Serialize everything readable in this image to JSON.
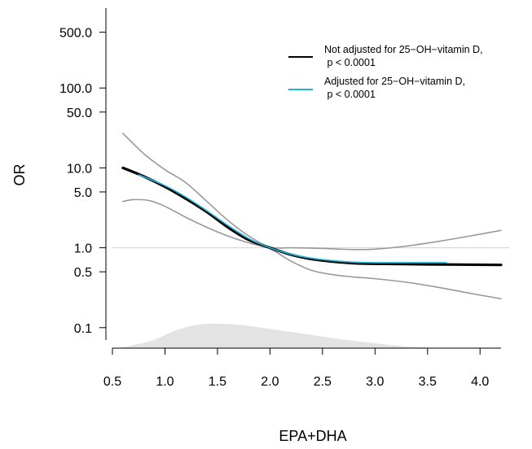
{
  "chart_data": {
    "type": "line",
    "title": "",
    "xlabel": "EPA+DHA",
    "ylabel": "OR",
    "xlim": [
      0.5,
      4.2
    ],
    "ylim": [
      0.07,
      1000
    ],
    "y_scale": "log",
    "x_ticks": [
      0.5,
      1.0,
      1.5,
      2.0,
      2.5,
      3.0,
      3.5,
      4.0
    ],
    "x_tick_labels": [
      "0.5",
      "1.0",
      "1.5",
      "2.0",
      "2.5",
      "3.0",
      "3.5",
      "4.0"
    ],
    "y_ticks": [
      0.1,
      0.5,
      1.0,
      5.0,
      10.0,
      50.0,
      100.0,
      500.0
    ],
    "y_tick_labels": [
      "0.1",
      "0.5",
      "1.0",
      "5.0",
      "10.0",
      "50.0",
      "100.0",
      "500.0"
    ],
    "reference_line": {
      "y": 1.0,
      "color": "#d0d0d0"
    },
    "legend": {
      "position": "top-right",
      "entries": [
        {
          "line1": "Not adjusted for 25−OH−vitamin D,",
          "line2": " p < 0.0001",
          "color": "#000000"
        },
        {
          "line1": "Adjusted for 25−OH−vitamin D,",
          "line2": " p < 0.0001",
          "color": "#1fb4d8"
        }
      ]
    },
    "series": [
      {
        "id": "not_adjusted",
        "color": "#000000",
        "x": [
          0.6,
          0.8,
          1.0,
          1.2,
          1.4,
          1.6,
          1.8,
          2.0,
          2.2,
          2.4,
          2.6,
          2.8,
          3.0,
          3.5,
          4.2
        ],
        "y": [
          10.0,
          7.8,
          5.8,
          4.1,
          2.8,
          1.8,
          1.25,
          1.0,
          0.82,
          0.72,
          0.67,
          0.64,
          0.63,
          0.62,
          0.61
        ]
      },
      {
        "id": "adjusted",
        "color": "#1fb4d8",
        "x": [
          0.75,
          1.0,
          1.2,
          1.4,
          1.6,
          1.8,
          2.0,
          2.2,
          2.4,
          2.6,
          2.8,
          3.0,
          3.3,
          3.68
        ],
        "y": [
          8.2,
          6.0,
          4.3,
          2.9,
          1.9,
          1.3,
          1.0,
          0.83,
          0.74,
          0.69,
          0.66,
          0.65,
          0.65,
          0.65
        ]
      },
      {
        "id": "ci_upper",
        "color": "#999999",
        "x": [
          0.6,
          0.8,
          1.0,
          1.2,
          1.4,
          1.6,
          1.8,
          2.0,
          2.2,
          2.4,
          2.6,
          2.8,
          3.0,
          3.3,
          3.6,
          3.9,
          4.2
        ],
        "y": [
          27,
          15,
          9.5,
          6.5,
          3.8,
          2.2,
          1.4,
          1.02,
          1.0,
          0.99,
          0.97,
          0.95,
          0.96,
          1.05,
          1.2,
          1.4,
          1.65
        ]
      },
      {
        "id": "ci_lower",
        "color": "#999999",
        "x": [
          0.6,
          0.7,
          0.85,
          1.0,
          1.2,
          1.4,
          1.6,
          1.8,
          2.0,
          2.2,
          2.4,
          2.6,
          2.8,
          3.0,
          3.3,
          3.6,
          3.9,
          4.2
        ],
        "y": [
          3.8,
          4.0,
          3.9,
          3.3,
          2.4,
          1.8,
          1.4,
          1.15,
          0.97,
          0.68,
          0.52,
          0.46,
          0.43,
          0.41,
          0.37,
          0.32,
          0.27,
          0.23
        ]
      }
    ],
    "density": {
      "color": "#e3e3e3",
      "x": [
        0.55,
        0.7,
        0.9,
        1.1,
        1.3,
        1.5,
        1.7,
        1.9,
        2.1,
        2.3,
        2.5,
        2.7,
        2.9,
        3.1,
        3.3,
        3.5,
        3.65
      ],
      "relative_height": [
        0.0,
        0.12,
        0.35,
        0.72,
        0.95,
        1.0,
        0.96,
        0.85,
        0.72,
        0.6,
        0.47,
        0.35,
        0.25,
        0.15,
        0.07,
        0.02,
        0.0
      ]
    }
  }
}
